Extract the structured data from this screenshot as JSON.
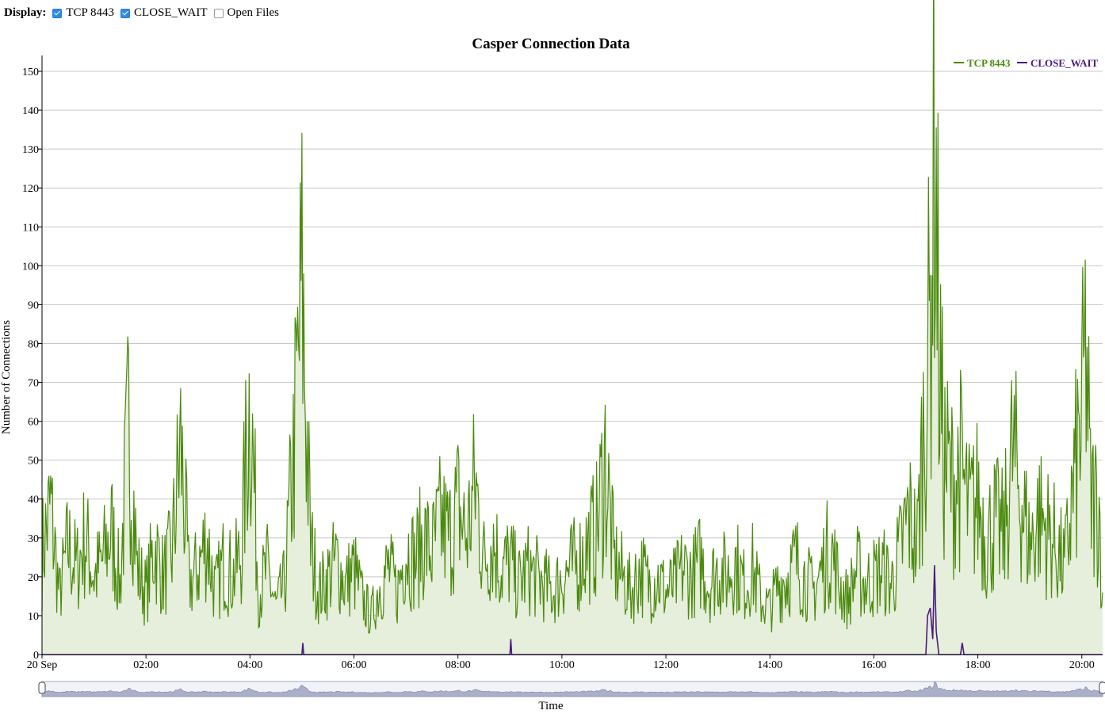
{
  "display_bar": {
    "label": "Display:",
    "options": [
      {
        "label": "TCP 8443",
        "checked": true
      },
      {
        "label": "CLOSE_WAIT",
        "checked": true
      },
      {
        "label": "Open Files",
        "checked": false
      }
    ]
  },
  "chart_data": {
    "type": "area",
    "title": "Casper Connection Data",
    "xlabel": "Time",
    "ylabel": "Number of Connections",
    "ylim": [
      0,
      150
    ],
    "yticks": [
      "0",
      "10",
      "20",
      "30",
      "40",
      "50",
      "60",
      "70",
      "80",
      "90",
      "100",
      "110",
      "120",
      "130",
      "140",
      "150"
    ],
    "xlim": [
      "00:00",
      "20:24"
    ],
    "xticks": [
      {
        "t": "00:00",
        "label": "20 Sep"
      },
      {
        "t": "02:00",
        "label": "02:00"
      },
      {
        "t": "04:00",
        "label": "04:00"
      },
      {
        "t": "06:00",
        "label": "06:00"
      },
      {
        "t": "08:00",
        "label": "08:00"
      },
      {
        "t": "10:00",
        "label": "10:00"
      },
      {
        "t": "12:00",
        "label": "12:00"
      },
      {
        "t": "14:00",
        "label": "14:00"
      },
      {
        "t": "16:00",
        "label": "16:00"
      },
      {
        "t": "18:00",
        "label": "18:00"
      },
      {
        "t": "20:00",
        "label": "20:00"
      }
    ],
    "grid": true,
    "legend_position": "top-right",
    "range_selector": true,
    "series": [
      {
        "name": "TCP 8443",
        "color": "#4a8a0c",
        "fill": "#e6eedc",
        "points": [
          [
            "00:00",
            26
          ],
          [
            "00:10",
            38
          ],
          [
            "00:20",
            15
          ],
          [
            "00:30",
            28
          ],
          [
            "00:40",
            22
          ],
          [
            "00:50",
            30
          ],
          [
            "01:00",
            20
          ],
          [
            "01:10",
            24
          ],
          [
            "01:20",
            32
          ],
          [
            "01:30",
            18
          ],
          [
            "01:40",
            60
          ],
          [
            "01:50",
            22
          ],
          [
            "02:00",
            16
          ],
          [
            "02:10",
            28
          ],
          [
            "02:20",
            20
          ],
          [
            "02:30",
            26
          ],
          [
            "02:40",
            54
          ],
          [
            "02:50",
            18
          ],
          [
            "03:00",
            22
          ],
          [
            "03:10",
            30
          ],
          [
            "03:20",
            16
          ],
          [
            "03:30",
            24
          ],
          [
            "03:40",
            20
          ],
          [
            "03:50",
            26
          ],
          [
            "04:00",
            69
          ],
          [
            "04:10",
            16
          ],
          [
            "04:20",
            22
          ],
          [
            "04:30",
            12
          ],
          [
            "04:40",
            18
          ],
          [
            "04:50",
            50
          ],
          [
            "05:00",
            94
          ],
          [
            "05:10",
            28
          ],
          [
            "05:20",
            16
          ],
          [
            "05:30",
            20
          ],
          [
            "05:40",
            24
          ],
          [
            "05:50",
            18
          ],
          [
            "06:00",
            22
          ],
          [
            "06:10",
            14
          ],
          [
            "06:20",
            10
          ],
          [
            "06:30",
            18
          ],
          [
            "06:40",
            22
          ],
          [
            "06:50",
            16
          ],
          [
            "07:00",
            28
          ],
          [
            "07:10",
            24
          ],
          [
            "07:20",
            30
          ],
          [
            "07:30",
            26
          ],
          [
            "07:40",
            34
          ],
          [
            "07:50",
            30
          ],
          [
            "08:00",
            38
          ],
          [
            "08:10",
            30
          ],
          [
            "08:20",
            44
          ],
          [
            "08:30",
            24
          ],
          [
            "08:40",
            30
          ],
          [
            "08:50",
            22
          ],
          [
            "09:00",
            24
          ],
          [
            "09:10",
            18
          ],
          [
            "09:20",
            22
          ],
          [
            "09:30",
            20
          ],
          [
            "09:40",
            18
          ],
          [
            "09:50",
            16
          ],
          [
            "10:00",
            20
          ],
          [
            "10:10",
            22
          ],
          [
            "10:20",
            24
          ],
          [
            "10:30",
            28
          ],
          [
            "10:40",
            32
          ],
          [
            "10:50",
            50
          ],
          [
            "11:00",
            24
          ],
          [
            "11:10",
            20
          ],
          [
            "11:20",
            16
          ],
          [
            "11:30",
            22
          ],
          [
            "11:40",
            18
          ],
          [
            "11:50",
            20
          ],
          [
            "12:00",
            16
          ],
          [
            "12:10",
            18
          ],
          [
            "12:20",
            22
          ],
          [
            "12:30",
            20
          ],
          [
            "12:40",
            24
          ],
          [
            "12:50",
            18
          ],
          [
            "13:00",
            22
          ],
          [
            "13:10",
            20
          ],
          [
            "13:20",
            24
          ],
          [
            "13:30",
            18
          ],
          [
            "13:40",
            22
          ],
          [
            "13:50",
            14
          ],
          [
            "14:00",
            12
          ],
          [
            "14:10",
            18
          ],
          [
            "14:20",
            20
          ],
          [
            "14:30",
            24
          ],
          [
            "14:40",
            20
          ],
          [
            "14:50",
            16
          ],
          [
            "15:00",
            22
          ],
          [
            "15:10",
            28
          ],
          [
            "15:20",
            18
          ],
          [
            "15:30",
            14
          ],
          [
            "15:40",
            22
          ],
          [
            "15:50",
            18
          ],
          [
            "16:00",
            20
          ],
          [
            "16:10",
            22
          ],
          [
            "16:20",
            18
          ],
          [
            "16:30",
            26
          ],
          [
            "16:40",
            36
          ],
          [
            "16:50",
            28
          ],
          [
            "17:00",
            70
          ],
          [
            "17:05",
            85
          ],
          [
            "17:10",
            141
          ],
          [
            "17:15",
            80
          ],
          [
            "17:20",
            52
          ],
          [
            "17:30",
            44
          ],
          [
            "17:40",
            48
          ],
          [
            "17:50",
            36
          ],
          [
            "18:00",
            40
          ],
          [
            "18:10",
            30
          ],
          [
            "18:20",
            34
          ],
          [
            "18:30",
            30
          ],
          [
            "18:40",
            52
          ],
          [
            "18:50",
            40
          ],
          [
            "19:00",
            28
          ],
          [
            "19:10",
            36
          ],
          [
            "19:20",
            32
          ],
          [
            "19:30",
            28
          ],
          [
            "19:40",
            22
          ],
          [
            "19:50",
            42
          ],
          [
            "20:00",
            60
          ],
          [
            "20:05",
            80
          ],
          [
            "20:10",
            40
          ],
          [
            "20:20",
            38
          ],
          [
            "20:24",
            16
          ]
        ]
      },
      {
        "name": "CLOSE_WAIT",
        "color": "#4b1a7e",
        "points": [
          [
            "00:00",
            0
          ],
          [
            "05:00",
            0
          ],
          [
            "05:01",
            3
          ],
          [
            "05:02",
            0
          ],
          [
            "09:00",
            0
          ],
          [
            "09:01",
            4
          ],
          [
            "09:02",
            0
          ],
          [
            "17:00",
            0
          ],
          [
            "17:02",
            10
          ],
          [
            "17:05",
            12
          ],
          [
            "17:08",
            4
          ],
          [
            "17:10",
            23
          ],
          [
            "17:12",
            6
          ],
          [
            "17:15",
            0
          ],
          [
            "17:40",
            0
          ],
          [
            "17:42",
            3
          ],
          [
            "17:44",
            0
          ],
          [
            "20:24",
            0
          ]
        ]
      }
    ]
  }
}
